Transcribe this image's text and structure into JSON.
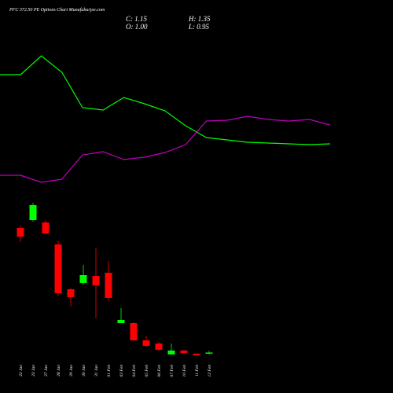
{
  "header": {
    "title": "PFC 372.50 PE Options Chart Munafaburjee.com",
    "close": "C: 1.15",
    "high": "H: 1.35",
    "open": "O: 1.00",
    "low": "L: 0.95"
  },
  "chart_data": [
    {
      "type": "line",
      "ylim": [
        0,
        260
      ],
      "series": [
        {
          "color": "#00ff00",
          "values": [
            205,
            205,
            229,
            208,
            163,
            160,
            176,
            168,
            159,
            140,
            125,
            122,
            119,
            118,
            117,
            116,
            117
          ]
        },
        {
          "color": "#c000c0",
          "values": [
            77,
            77,
            68,
            72,
            103,
            107,
            97,
            100,
            106,
            116,
            146,
            147,
            152,
            148,
            146,
            148,
            141
          ]
        }
      ]
    },
    {
      "type": "candlestick",
      "ylim": [
        0,
        22
      ],
      "up_color": "#00ff00",
      "down_color": "#ff0000",
      "categories": [
        "22 Jan",
        "23 Jan",
        "27 Jan",
        "28 Jan",
        "29 Jan",
        "30 Jan",
        "31 Jan",
        "01 Feb",
        "03 Feb",
        "04 Feb",
        "05 Feb",
        "06 Feb",
        "07 Feb",
        "10 Feb",
        "11 Feb",
        "12 Feb"
      ],
      "open": [
        17,
        18,
        17.7,
        14.9,
        9.2,
        10,
        10.9,
        11.3,
        4.9,
        4.9,
        2.7,
        2.3,
        0.9,
        1.4,
        1.0,
        1.0
      ],
      "high": [
        17.3,
        20.2,
        18,
        15.4,
        9.4,
        12.3,
        14.4,
        12.8,
        6.8,
        5,
        3.3,
        2.5,
        2.3,
        1.5,
        1.0,
        1.35
      ],
      "low": [
        15.2,
        17.8,
        16.2,
        8.4,
        7,
        9.8,
        5.5,
        7.7,
        4.9,
        2.6,
        1.9,
        1.4,
        0.9,
        1.0,
        0.8,
        0.95
      ],
      "close": [
        15.9,
        19.9,
        16.3,
        8.7,
        8.2,
        11,
        9.7,
        8.1,
        5.3,
        2.7,
        2,
        1.5,
        1.4,
        1.1,
        0.8,
        1.15
      ]
    }
  ]
}
